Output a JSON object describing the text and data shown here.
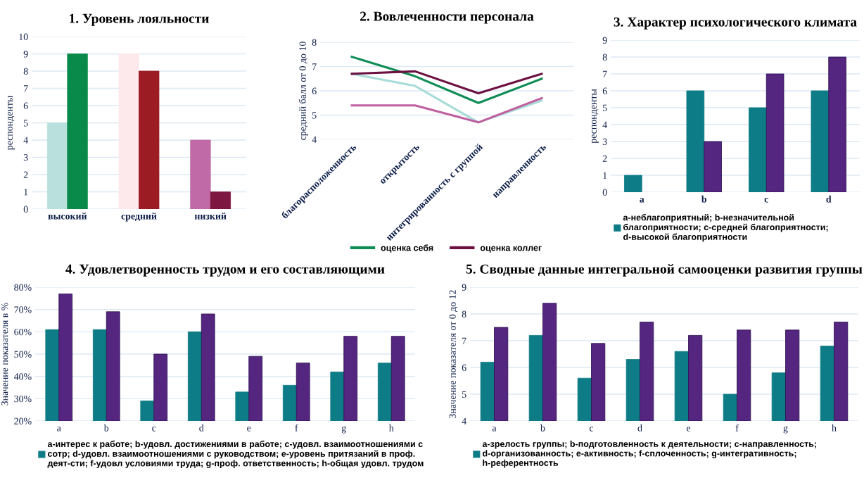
{
  "chart_data": [
    {
      "type": "bar",
      "title": "1. Уровень лояльности",
      "ylabel": "респонденты",
      "categories": [
        "высокий",
        "средний",
        "низкий"
      ],
      "ylim": [
        0,
        10
      ],
      "yticks": [
        0,
        1,
        2,
        3,
        4,
        5,
        6,
        7,
        8,
        9,
        10
      ],
      "grid": "y",
      "legend": false,
      "series": [
        {
          "colors": [
            "#b9e0dc",
            "#fde9ec",
            "#c06aa8"
          ],
          "values": [
            5,
            9,
            4
          ]
        },
        {
          "colors": [
            "#0a8a4a",
            "#9b1c23",
            "#7d1640"
          ],
          "values": [
            9,
            8,
            1
          ]
        }
      ]
    },
    {
      "type": "line",
      "title": "2. Вовлеченности персонала",
      "ylabel": "средний балл от 0 до 10",
      "categories": [
        "благорасположенность",
        "открытость",
        "интегрированность с группой",
        "направленность"
      ],
      "ylim": [
        4,
        8
      ],
      "yticks": [
        4,
        5,
        6,
        7,
        8
      ],
      "grid": "y",
      "legend": "bottom",
      "series": [
        {
          "color": "#a8dcd8",
          "values": [
            6.7,
            6.2,
            4.7,
            5.6
          ]
        },
        {
          "color": "#c060a0",
          "values": [
            5.4,
            5.4,
            4.7,
            5.7
          ]
        },
        {
          "name": "оценка себя",
          "color": "#0f8c55",
          "values": [
            7.4,
            6.6,
            5.5,
            6.5
          ]
        },
        {
          "name": "оценка коллег",
          "color": "#6b1040",
          "values": [
            6.7,
            6.8,
            5.9,
            6.7
          ]
        }
      ]
    },
    {
      "type": "bar",
      "title": "3. Характер психологического климата",
      "ylabel": "респонденты",
      "categories": [
        "a",
        "b",
        "c",
        "d"
      ],
      "ylim": [
        0,
        9
      ],
      "yticks": [
        0,
        1,
        2,
        3,
        4,
        5,
        6,
        7,
        8,
        9
      ],
      "grid": "y",
      "legend": "bottom",
      "series": [
        {
          "name": "a-неблагоприятный; b-незначительной благоприятности; c-средней благоприятности; d-высокой благоприятности",
          "color": "#0e7c86",
          "values": [
            1,
            6,
            5,
            6
          ]
        },
        {
          "color": "#55267f",
          "values": [
            null,
            3,
            7,
            8
          ]
        }
      ]
    },
    {
      "type": "bar",
      "title": "4. Удовлетворенность трудом и его составляющими",
      "ylabel": "Значение показателя в %",
      "categories": [
        "a",
        "b",
        "c",
        "d",
        "e",
        "f",
        "g",
        "h"
      ],
      "ylim": [
        20,
        80
      ],
      "yticks": [
        {
          "value": 20,
          "label": "20%"
        },
        {
          "value": 30,
          "label": "30%"
        },
        {
          "value": 40,
          "label": "40%"
        },
        {
          "value": 50,
          "label": "50%"
        },
        {
          "value": 60,
          "label": "60%"
        },
        {
          "value": 70,
          "label": "70%"
        },
        {
          "value": 80,
          "label": "80%"
        }
      ],
      "grid": "y",
      "legend": "bottom",
      "series": [
        {
          "name": "a-интерес к работе; b-удовл. достижениями в работе; c-удовл. взаимоотношениями с сотр; d-удовл. взаимоотношениями с руководством; e-уровень притязаний в проф. деят-сти; f-удовл условиями труда; g-проф. ответственность; h-общая удовл. трудом",
          "color": "#0e7c86",
          "values": [
            61,
            61,
            29,
            60,
            33,
            36,
            42,
            46
          ]
        },
        {
          "color": "#55267f",
          "values": [
            77,
            69,
            50,
            68,
            49,
            46,
            58,
            58
          ]
        }
      ]
    },
    {
      "type": "bar",
      "title": "5. Сводные данные интегральной самооценки развития группы",
      "ylabel": "Значение показателя от 0 до 12",
      "categories": [
        "a",
        "b",
        "c",
        "d",
        "e",
        "f",
        "g",
        "h"
      ],
      "ylim": [
        4,
        9
      ],
      "yticks": [
        4,
        5,
        6,
        7,
        8,
        9
      ],
      "grid": "y",
      "legend": "bottom",
      "series": [
        {
          "name": "a-зрелость группы; b-подготовленность к деятельности; c-направленность; d-организованность; e-активность; f-сплоченность; g-интегративность; h-референтность",
          "color": "#0e7c86",
          "values": [
            6.2,
            7.2,
            5.6,
            6.3,
            6.6,
            5.0,
            5.8,
            6.8
          ]
        },
        {
          "color": "#55267f",
          "values": [
            7.5,
            8.4,
            6.9,
            7.7,
            7.2,
            7.4,
            7.4,
            7.7
          ]
        }
      ]
    }
  ]
}
